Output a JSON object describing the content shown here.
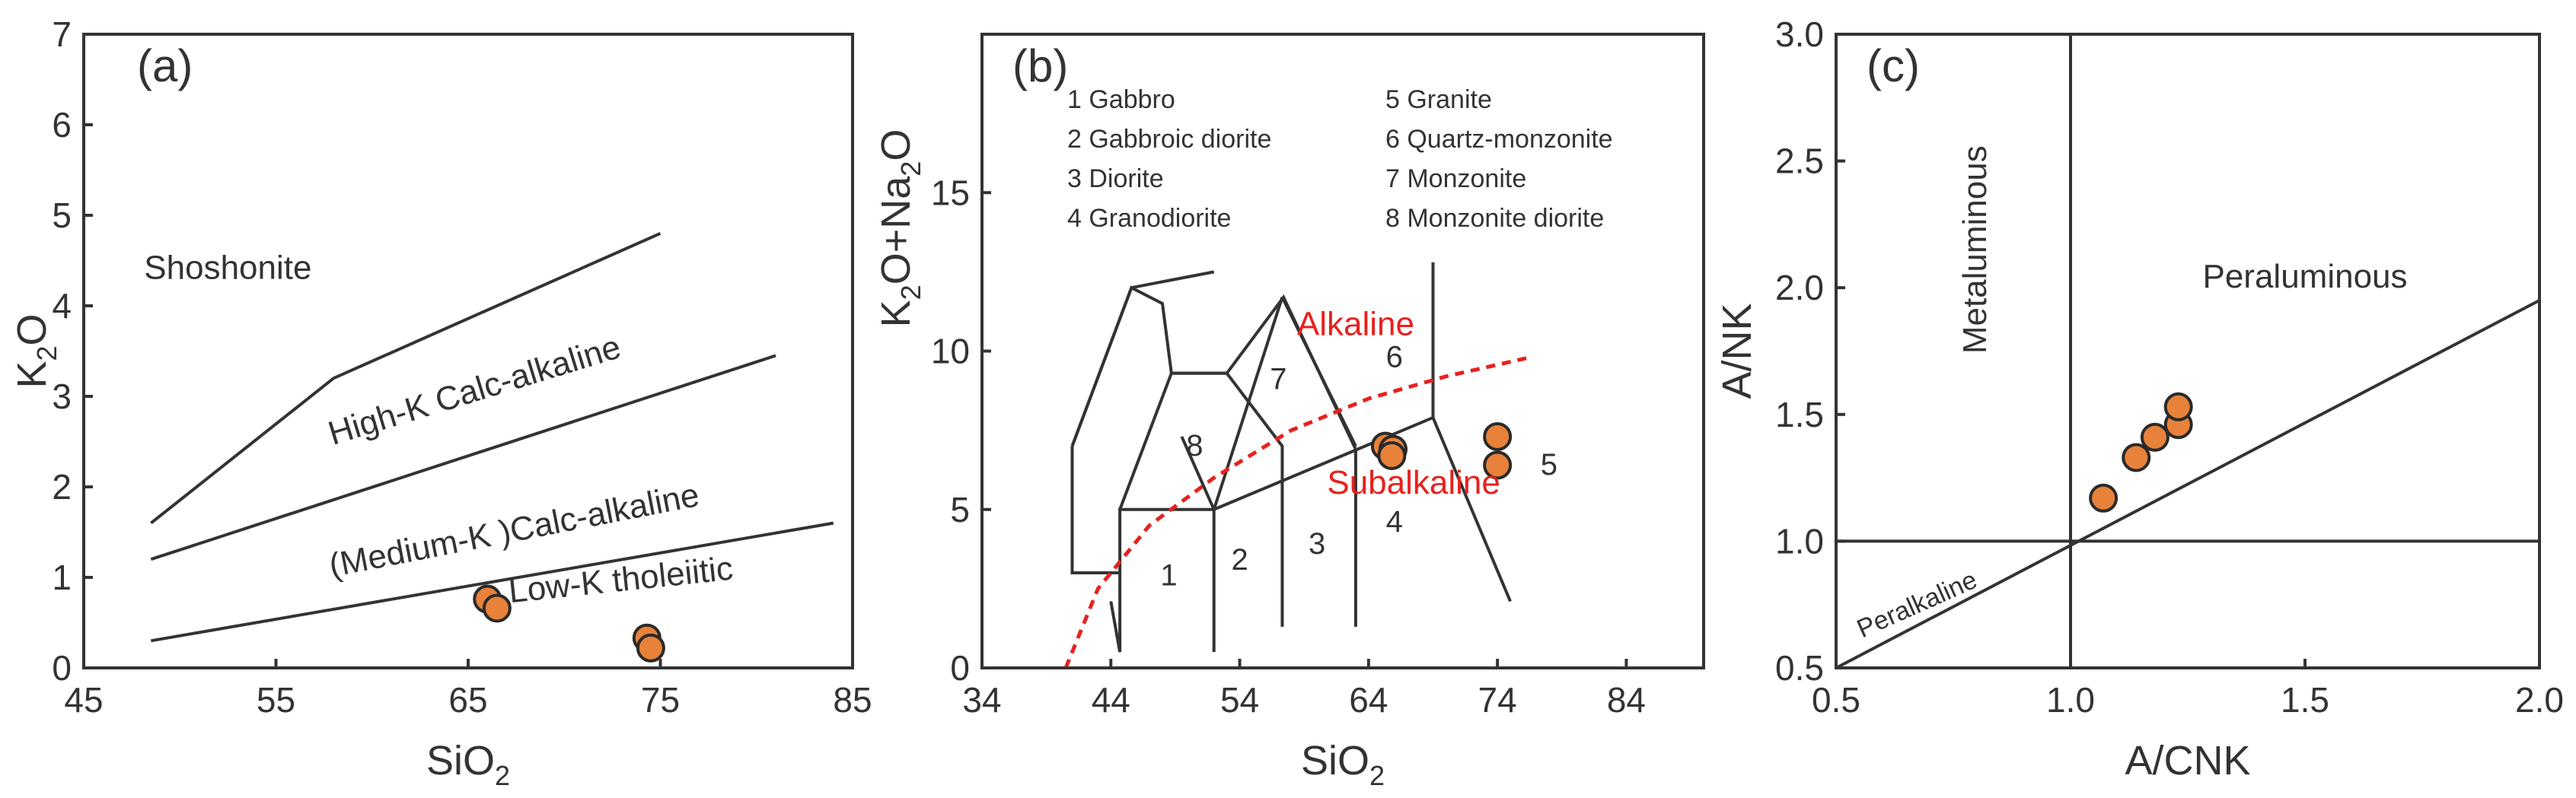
{
  "chart_data": [
    {
      "type": "scatter",
      "panel_label": "(a)",
      "xlabel": {
        "main": "SiO",
        "sub": "2"
      },
      "ylabel": {
        "pre": "K",
        "sub": "2",
        "post": "O"
      },
      "xlim": [
        45,
        85
      ],
      "ylim": [
        0,
        7
      ],
      "xticks": [
        45,
        55,
        65,
        75,
        85
      ],
      "yticks": [
        0,
        1,
        2,
        3,
        4,
        5,
        6,
        7
      ],
      "series": [
        {
          "name": "samples",
          "points": [
            [
              66.0,
              0.76
            ],
            [
              66.5,
              0.66
            ],
            [
              74.3,
              0.33
            ],
            [
              74.5,
              0.22
            ]
          ]
        }
      ],
      "boundary_lines": [
        [
          [
            48.5,
            1.6
          ],
          [
            58,
            3.2
          ],
          [
            75,
            4.8
          ]
        ],
        [
          [
            48.5,
            1.2
          ],
          [
            81,
            3.45
          ]
        ],
        [
          [
            48.5,
            0.3
          ],
          [
            84,
            1.6
          ]
        ]
      ],
      "fields": [
        {
          "name": "Shoshonite",
          "x": 52.5,
          "y": 4.3,
          "rotate": 0
        },
        {
          "name": "High-K Calc-alkaline",
          "x": 65.5,
          "y": 2.95,
          "rotate": -17
        },
        {
          "name": "(Medium-K )Calc-alkaline",
          "x": 67.5,
          "y": 1.4,
          "rotate": -11
        },
        {
          "name": "Low-K tholeiitic",
          "x": 73,
          "y": 0.85,
          "rotate": -6
        }
      ]
    },
    {
      "type": "scatter",
      "panel_label": "(b)",
      "xlabel": {
        "main": "SiO",
        "sub": "2"
      },
      "ylabel": {
        "pre": "K",
        "sub1": "2",
        "mid": "O+Na",
        "sub2": "2",
        "post": "O"
      },
      "xlim": [
        34,
        90
      ],
      "ylim": [
        0,
        20
      ],
      "xticks": [
        34,
        44,
        54,
        64,
        74,
        84
      ],
      "yticks": [
        0,
        5,
        10,
        15
      ],
      "legend": [
        "1 Gabbro",
        "2 Gabbroic diorite",
        "3 Diorite",
        "4 Granodiorite",
        "5 Granite",
        "6 Quartz-monzonite",
        "7 Monzonite",
        "8 Monzonite diorite"
      ],
      "series": [
        {
          "name": "samples",
          "points": [
            [
              65.3,
              7.0
            ],
            [
              65.9,
              6.9
            ],
            [
              65.8,
              6.7
            ],
            [
              74.0,
              7.3
            ],
            [
              74.0,
              6.4
            ]
          ]
        }
      ],
      "divider_curve": [
        [
          40.5,
          0
        ],
        [
          43,
          2.5
        ],
        [
          47,
          4.5
        ],
        [
          52,
          6.0
        ],
        [
          58,
          7.5
        ],
        [
          64,
          8.5
        ],
        [
          70,
          9.2
        ],
        [
          76.5,
          9.8
        ]
      ],
      "field_lines": [
        [
          [
            41,
            7
          ],
          [
            41,
            3
          ],
          [
            44.7,
            3
          ]
        ],
        [
          [
            41,
            7
          ],
          [
            45.6,
            12
          ],
          [
            52,
            12.5
          ]
        ],
        [
          [
            41,
            7
          ],
          [
            45.6,
            12
          ],
          [
            48,
            11.5
          ],
          [
            48.7,
            9.3
          ]
        ],
        [
          [
            44,
            2.1
          ],
          [
            44.7,
            0.5
          ],
          [
            44.7,
            5.0
          ],
          [
            52.0,
            5.0
          ],
          [
            52.0,
            0.5
          ]
        ],
        [
          [
            44.7,
            5.0
          ],
          [
            48.7,
            9.3
          ],
          [
            53.0,
            9.3
          ]
        ],
        [
          [
            48.7,
            9.3
          ],
          [
            53,
            9.3
          ],
          [
            57.4,
            11.7
          ],
          [
            57.4,
            11.7
          ],
          [
            63,
            6.9
          ],
          [
            63,
            1.3
          ]
        ],
        [
          [
            52,
            5.0
          ],
          [
            57.3,
            11.7
          ]
        ],
        [
          [
            49.5,
            7.3
          ],
          [
            52,
            5.0
          ]
        ],
        [
          [
            57.3,
            11.7
          ],
          [
            63,
            7.0
          ]
        ],
        [
          [
            53.0,
            9.3
          ],
          [
            57.3,
            7.0
          ],
          [
            57.3,
            1.3
          ]
        ],
        [
          [
            52.0,
            5.0
          ],
          [
            69,
            7.9
          ],
          [
            75,
            2.1
          ]
        ],
        [
          [
            69,
            7.9
          ],
          [
            69,
            12.8
          ]
        ]
      ],
      "numbers": [
        {
          "t": "1",
          "x": 48.5,
          "y": 2.6
        },
        {
          "t": "2",
          "x": 54,
          "y": 3.1
        },
        {
          "t": "3",
          "x": 60,
          "y": 3.6
        },
        {
          "t": "4",
          "x": 66,
          "y": 4.3
        },
        {
          "t": "5",
          "x": 78,
          "y": 6.1
        },
        {
          "t": "6",
          "x": 66,
          "y": 9.5
        },
        {
          "t": "7",
          "x": 57,
          "y": 8.8
        },
        {
          "t": "8",
          "x": 50.5,
          "y": 6.7
        }
      ],
      "labels": [
        {
          "name": "Alkaline",
          "x": 63,
          "y": 10.5
        },
        {
          "name": "Subalkaline",
          "x": 67.5,
          "y": 5.5
        }
      ]
    },
    {
      "type": "scatter",
      "panel_label": "(c)",
      "xlabel": "A/CNK",
      "ylabel": "A/NK",
      "xlim": [
        0.5,
        2.0
      ],
      "ylim": [
        0.5,
        3.0
      ],
      "xticks": [
        "0.5",
        "1.0",
        "1.5",
        "2.0"
      ],
      "yticks": [
        "0.5",
        "1.0",
        "1.5",
        "2.0",
        "2.5",
        "3.0"
      ],
      "series": [
        {
          "name": "samples",
          "points": [
            [
              1.07,
              1.17
            ],
            [
              1.14,
              1.33
            ],
            [
              1.18,
              1.41
            ],
            [
              1.23,
              1.46
            ],
            [
              1.23,
              1.53
            ]
          ]
        }
      ],
      "lines": [
        [
          [
            1.0,
            0.5
          ],
          [
            1.0,
            3.0
          ]
        ],
        [
          [
            0.5,
            1.0
          ],
          [
            2.0,
            1.0
          ]
        ],
        [
          [
            0.5,
            0.5
          ],
          [
            2.0,
            1.95
          ]
        ]
      ],
      "fields": [
        {
          "name": "Metaluminous",
          "x": 0.82,
          "y": 2.15,
          "rotate": -90
        },
        {
          "name": "Peraluminous",
          "x": 1.5,
          "y": 2.0,
          "rotate": 0
        },
        {
          "name": "Peralkaline",
          "x": 0.68,
          "y": 0.72,
          "rotate": -24
        }
      ]
    }
  ]
}
